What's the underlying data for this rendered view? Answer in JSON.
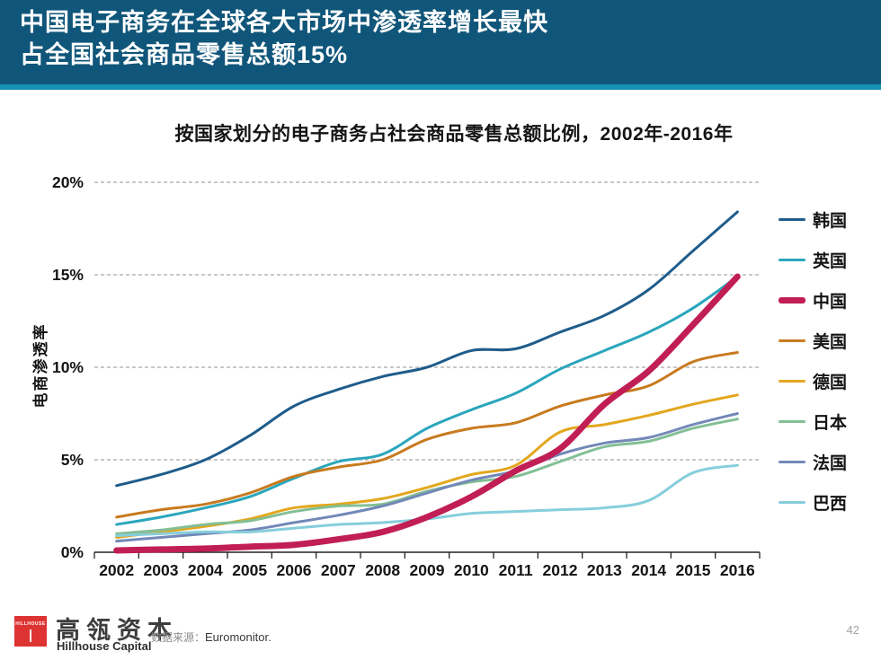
{
  "header": {
    "title_line1": "中国电子商务在全球各大市场中渗透率增长最快",
    "title_line2": "占全国社会商品零售总额15%",
    "bg_color": "#10567A",
    "accent_color": "#1692B4"
  },
  "chart_data": {
    "type": "line",
    "title": "按国家划分的电子商务占社会商品零售总额比例，2002年-2016年",
    "ylabel": "电商渗透率",
    "xlabel": "",
    "ylim": [
      0,
      20
    ],
    "grid": "horizontal-dashed",
    "legend_position": "right",
    "x": [
      2002,
      2003,
      2004,
      2005,
      2006,
      2007,
      2008,
      2009,
      2010,
      2011,
      2012,
      2013,
      2014,
      2015,
      2016
    ],
    "yticks": [
      {
        "label": "0%",
        "value": 0
      },
      {
        "label": "5%",
        "value": 5
      },
      {
        "label": "10%",
        "value": 10
      },
      {
        "label": "15%",
        "value": 15
      },
      {
        "label": "20%",
        "value": 20
      }
    ],
    "series": [
      {
        "id": "korea",
        "name": "韩国",
        "color": "#1F5C8B",
        "width": 3,
        "values": [
          3.6,
          4.2,
          5.0,
          6.3,
          7.9,
          8.8,
          9.5,
          10.0,
          10.9,
          11.0,
          11.9,
          12.8,
          14.2,
          16.3,
          18.4
        ]
      },
      {
        "id": "uk",
        "name": "英国",
        "color": "#2AA6BC",
        "width": 3,
        "values": [
          1.5,
          1.9,
          2.4,
          3.0,
          4.0,
          4.9,
          5.3,
          6.7,
          7.7,
          8.6,
          9.9,
          10.9,
          11.9,
          13.2,
          14.9
        ]
      },
      {
        "id": "china",
        "name": "中国",
        "color": "#C11E56",
        "width": 7,
        "values": [
          0.1,
          0.15,
          0.2,
          0.3,
          0.4,
          0.7,
          1.1,
          1.9,
          3.0,
          4.4,
          5.6,
          8.0,
          9.8,
          12.3,
          14.9
        ]
      },
      {
        "id": "us",
        "name": "美国",
        "color": "#C87A1E",
        "width": 3,
        "values": [
          1.9,
          2.3,
          2.6,
          3.2,
          4.1,
          4.6,
          5.0,
          6.1,
          6.7,
          7.0,
          7.9,
          8.5,
          9.0,
          10.3,
          10.8
        ]
      },
      {
        "id": "germany",
        "name": "德国",
        "color": "#E3A71E",
        "width": 3,
        "values": [
          0.8,
          1.1,
          1.4,
          1.8,
          2.4,
          2.6,
          2.9,
          3.5,
          4.2,
          4.7,
          6.5,
          6.9,
          7.4,
          8.0,
          8.5
        ]
      },
      {
        "id": "japan",
        "name": "日本",
        "color": "#83BF95",
        "width": 3,
        "values": [
          1.0,
          1.2,
          1.5,
          1.7,
          2.2,
          2.5,
          2.6,
          3.3,
          3.8,
          4.1,
          4.9,
          5.7,
          6.0,
          6.7,
          7.2
        ]
      },
      {
        "id": "france",
        "name": "法国",
        "color": "#7288B8",
        "width": 3,
        "values": [
          0.6,
          0.8,
          1.0,
          1.2,
          1.6,
          2.0,
          2.5,
          3.2,
          3.9,
          4.4,
          5.3,
          5.9,
          6.2,
          6.9,
          7.5
        ]
      },
      {
        "id": "brazil",
        "name": "巴西",
        "color": "#86CEDC",
        "width": 3,
        "values": [
          0.9,
          1.0,
          1.1,
          1.1,
          1.3,
          1.5,
          1.6,
          1.8,
          2.1,
          2.2,
          2.3,
          2.4,
          2.8,
          4.3,
          4.7
        ]
      }
    ]
  },
  "footer": {
    "logo_word": "HILLHOUSE",
    "brand_cn": "高瓴资本",
    "brand_en": "Hillhouse Capital",
    "source_label": "数据来源：",
    "source_value": "Euromonitor.",
    "page_number": "42",
    "logo_color": "#DD3333"
  }
}
